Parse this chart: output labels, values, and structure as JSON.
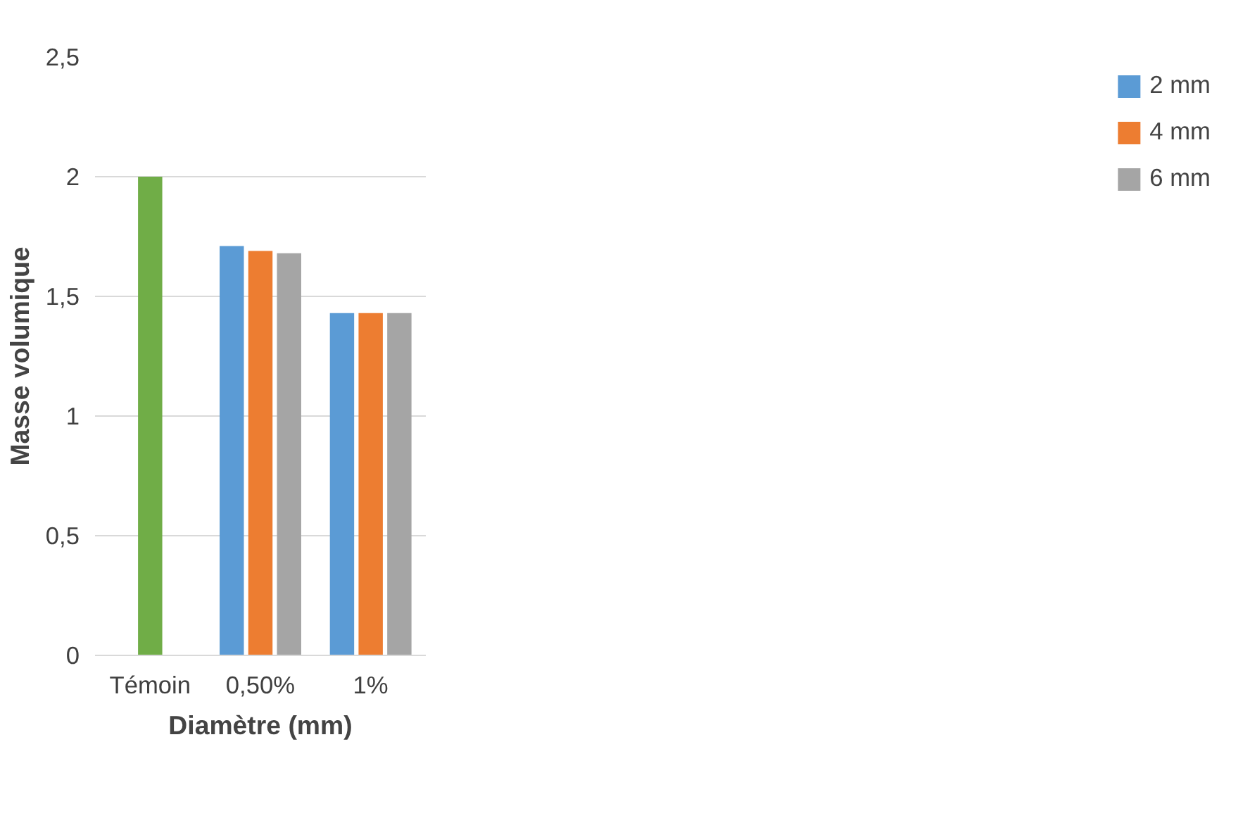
{
  "chart_data": {
    "type": "bar",
    "xlabel": "Diamètre (mm)",
    "ylabel": "Masse volumique",
    "categories": [
      "Témoin",
      "0,50%",
      "1%"
    ],
    "series": [
      {
        "color": "#70ad47",
        "values": [
          2,
          null,
          null
        ]
      },
      {
        "name": "2 mm",
        "color": "#5b9bd5",
        "values": [
          null,
          1.71,
          1.43
        ]
      },
      {
        "name": "4 mm",
        "color": "#ed7d31",
        "values": [
          null,
          1.69,
          1.43
        ]
      },
      {
        "name": "6 mm",
        "color": "#a5a5a5",
        "values": [
          null,
          1.68,
          1.43
        ]
      }
    ],
    "ylim": [
      0,
      2.5
    ],
    "yticks": [
      {
        "value": 0,
        "label": "0"
      },
      {
        "value": 0.5,
        "label": "0,5"
      },
      {
        "value": 1,
        "label": "1"
      },
      {
        "value": 1.5,
        "label": "1,5"
      },
      {
        "value": 2,
        "label": "2"
      },
      {
        "value": 2.5,
        "label": "2,5"
      }
    ],
    "grid": "y",
    "legend": "right"
  }
}
